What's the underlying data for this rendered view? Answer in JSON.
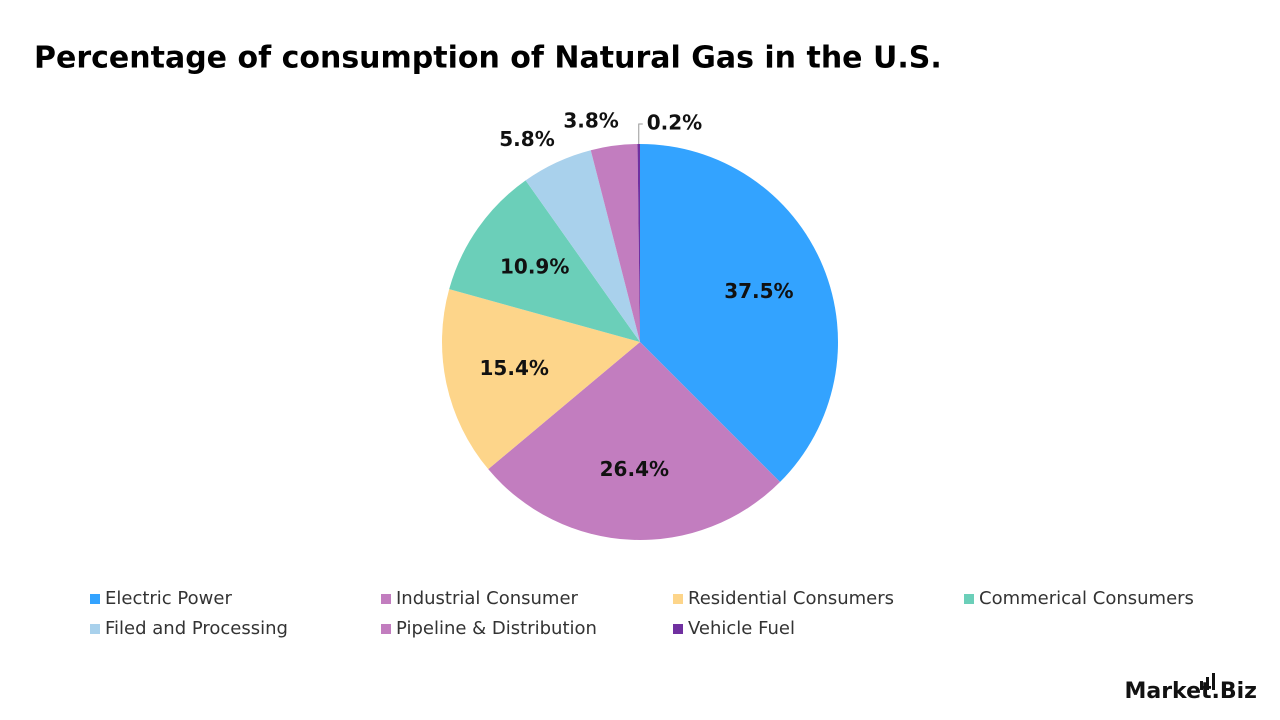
{
  "chart_data": {
    "type": "pie",
    "title": "Percentage of consumption of Natural Gas in the U.S.",
    "categories": [
      "Electric Power",
      "Industrial Consumer",
      "Residential Consumers",
      "Commerical Consumers",
      "Filed and Processing",
      "Pipeline & Distribution",
      "Vehicle Fuel"
    ],
    "values": [
      37.5,
      26.4,
      15.4,
      10.9,
      5.8,
      3.8,
      0.2
    ],
    "value_labels": [
      "37.5%",
      "26.4%",
      "15.4%",
      "10.9%",
      "5.8%",
      "3.8%",
      "0.2%"
    ],
    "colors": [
      "#33a3ff",
      "#c27dbf",
      "#fdd58a",
      "#6bcfb9",
      "#a9d1ec",
      "#c27dbf",
      "#7030a0"
    ],
    "legend": "bottom"
  },
  "brand": "Market.Biz"
}
